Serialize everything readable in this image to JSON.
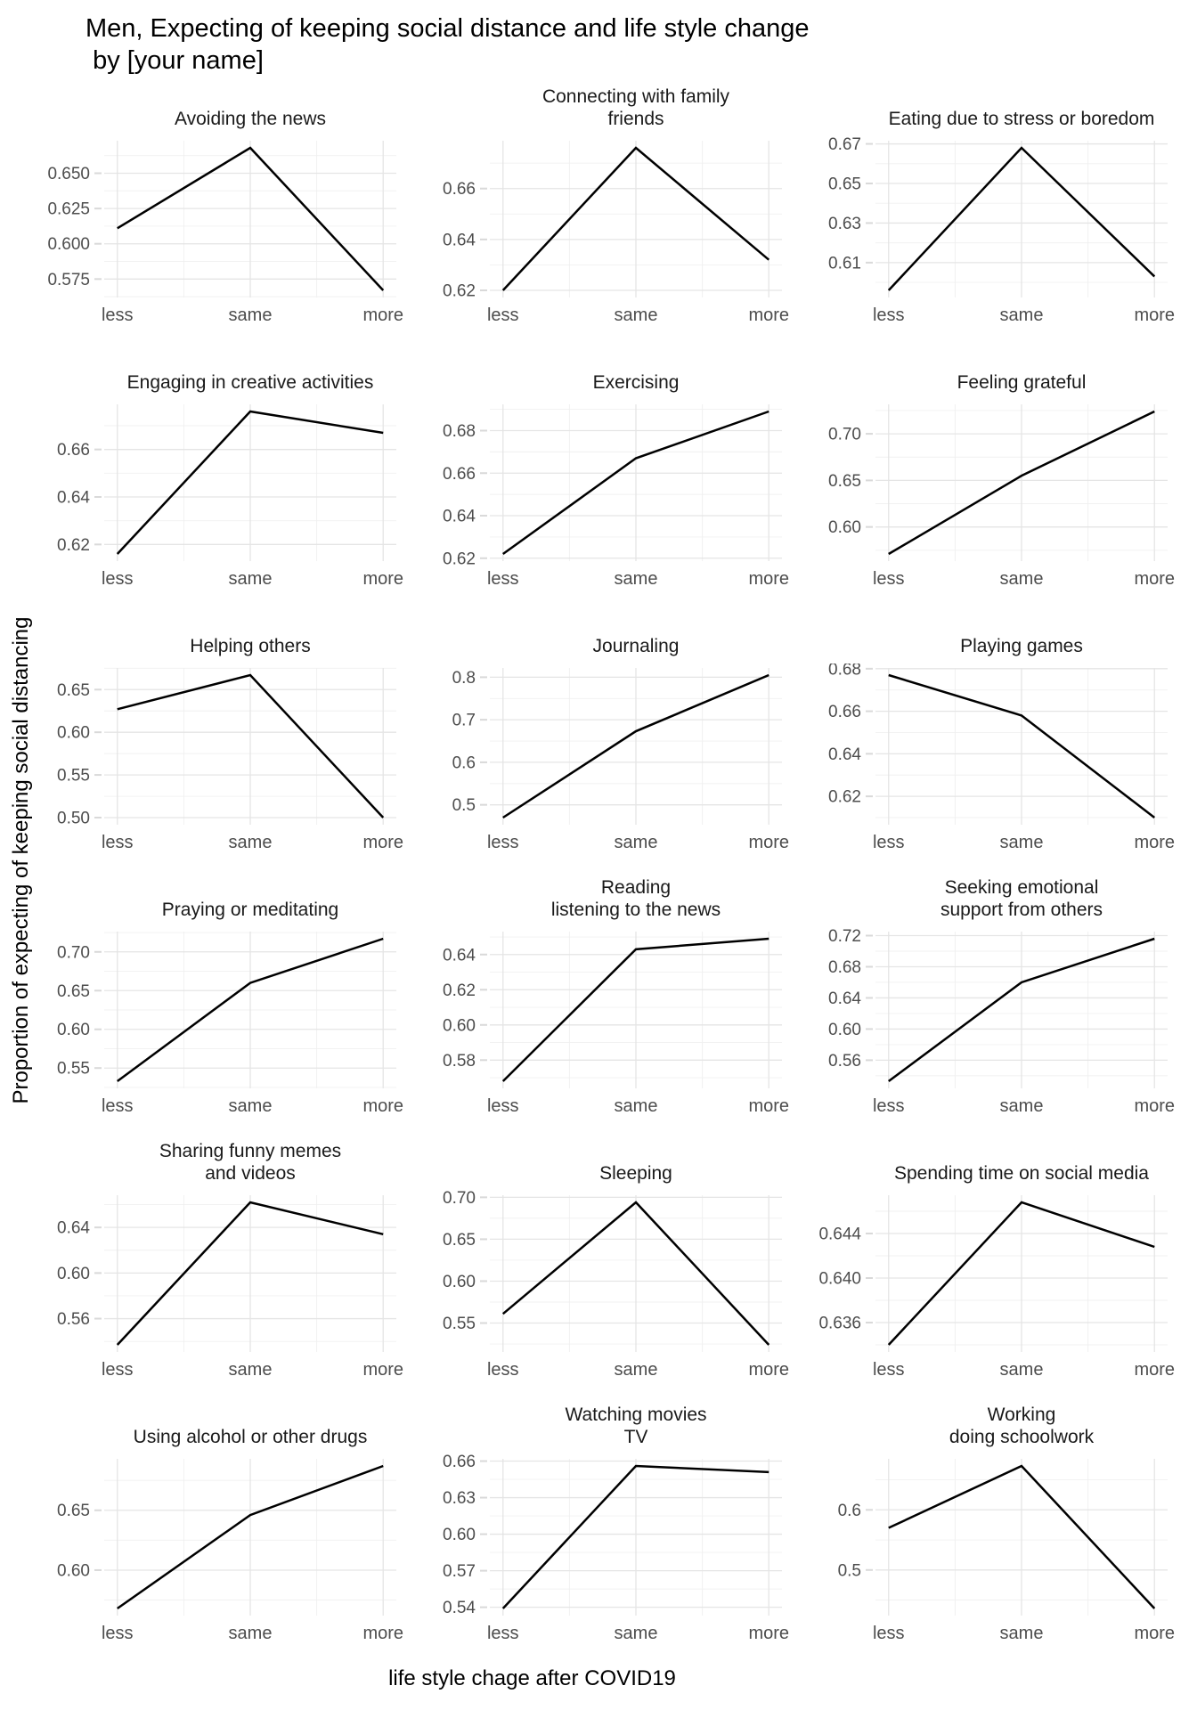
{
  "header": {
    "title": "Men, Expecting of keeping social distance and life style change\n by [your name]"
  },
  "axes": {
    "x_label": "life style chage after COVID19",
    "y_label": "Proportion of expecting of keeping social distancing"
  },
  "colors": {
    "line": "#000000",
    "grid_major": "#e5e5e5",
    "grid_minor": "#f0f0f0",
    "axis_tick": "#d9d9d9",
    "tick_text": "#4d4d4d",
    "facet_title_text": "#1a1a1a",
    "background": "#ffffff"
  },
  "chart_data": {
    "type": "line",
    "layout": {
      "rows": 6,
      "cols": 3,
      "grid": true,
      "legend": false,
      "y_expand": 0.05,
      "free_y_scales": true
    },
    "categories": [
      "less",
      "same",
      "more"
    ],
    "facets": [
      {
        "title": "Avoiding the news",
        "values": [
          0.611,
          0.668,
          0.567
        ],
        "yticks": [
          0.575,
          0.6,
          0.625,
          0.65
        ],
        "ytick_labels": [
          "0.575",
          "0.600",
          "0.625",
          "0.650"
        ]
      },
      {
        "title": "Connecting with family\nfriends",
        "values": [
          0.62,
          0.676,
          0.632
        ],
        "yticks": [
          0.62,
          0.64,
          0.66
        ],
        "ytick_labels": [
          "0.62",
          "0.64",
          "0.66"
        ]
      },
      {
        "title": "Eating due to stress or boredom",
        "values": [
          0.596,
          0.668,
          0.603
        ],
        "yticks": [
          0.61,
          0.63,
          0.65,
          0.67
        ],
        "ytick_labels": [
          "0.61",
          "0.63",
          "0.65",
          "0.67"
        ]
      },
      {
        "title": "Engaging in creative activities",
        "values": [
          0.616,
          0.676,
          0.667
        ],
        "yticks": [
          0.62,
          0.64,
          0.66
        ],
        "ytick_labels": [
          "0.62",
          "0.64",
          "0.66"
        ]
      },
      {
        "title": "Exercising",
        "values": [
          0.622,
          0.667,
          0.689
        ],
        "yticks": [
          0.62,
          0.64,
          0.66,
          0.68
        ],
        "ytick_labels": [
          "0.62",
          "0.64",
          "0.66",
          "0.68"
        ]
      },
      {
        "title": "Feeling grateful",
        "values": [
          0.571,
          0.655,
          0.724
        ],
        "yticks": [
          0.6,
          0.65,
          0.7
        ],
        "ytick_labels": [
          "0.60",
          "0.65",
          "0.70"
        ]
      },
      {
        "title": "Helping others",
        "values": [
          0.627,
          0.667,
          0.5
        ],
        "yticks": [
          0.5,
          0.55,
          0.6,
          0.65
        ],
        "ytick_labels": [
          "0.50",
          "0.55",
          "0.60",
          "0.65"
        ]
      },
      {
        "title": "Journaling",
        "values": [
          0.47,
          0.673,
          0.805
        ],
        "yticks": [
          0.5,
          0.6,
          0.7,
          0.8
        ],
        "ytick_labels": [
          "0.5",
          "0.6",
          "0.7",
          "0.8"
        ]
      },
      {
        "title": "Playing games",
        "values": [
          0.677,
          0.658,
          0.61
        ],
        "yticks": [
          0.62,
          0.64,
          0.66,
          0.68
        ],
        "ytick_labels": [
          "0.62",
          "0.64",
          "0.66",
          "0.68"
        ]
      },
      {
        "title": "Praying or meditating",
        "values": [
          0.533,
          0.66,
          0.717
        ],
        "yticks": [
          0.55,
          0.6,
          0.65,
          0.7
        ],
        "ytick_labels": [
          "0.55",
          "0.60",
          "0.65",
          "0.70"
        ]
      },
      {
        "title": "Reading\nlistening to the news",
        "values": [
          0.568,
          0.643,
          0.649
        ],
        "yticks": [
          0.58,
          0.6,
          0.62,
          0.64
        ],
        "ytick_labels": [
          "0.58",
          "0.60",
          "0.62",
          "0.64"
        ]
      },
      {
        "title": "Seeking emotional\nsupport from others",
        "values": [
          0.533,
          0.66,
          0.716
        ],
        "yticks": [
          0.56,
          0.6,
          0.64,
          0.68,
          0.72
        ],
        "ytick_labels": [
          "0.56",
          "0.60",
          "0.64",
          "0.68",
          "0.72"
        ]
      },
      {
        "title": "Sharing funny memes\nand videos",
        "values": [
          0.537,
          0.662,
          0.634
        ],
        "yticks": [
          0.56,
          0.6,
          0.64
        ],
        "ytick_labels": [
          "0.56",
          "0.60",
          "0.64"
        ]
      },
      {
        "title": "Sleeping",
        "values": [
          0.561,
          0.694,
          0.524
        ],
        "yticks": [
          0.55,
          0.6,
          0.65,
          0.7
        ],
        "ytick_labels": [
          "0.55",
          "0.60",
          "0.65",
          "0.70"
        ]
      },
      {
        "title": "Spending time on social media",
        "values": [
          0.634,
          0.6468,
          0.6428
        ],
        "yticks": [
          0.636,
          0.64,
          0.644
        ],
        "ytick_labels": [
          "0.636",
          "0.640",
          "0.644"
        ]
      },
      {
        "title": "Using alcohol or other drugs",
        "values": [
          0.568,
          0.646,
          0.687
        ],
        "yticks": [
          0.6,
          0.65
        ],
        "ytick_labels": [
          "0.60",
          "0.65"
        ]
      },
      {
        "title": "Watching movies\nTV",
        "values": [
          0.539,
          0.656,
          0.651
        ],
        "yticks": [
          0.54,
          0.57,
          0.6,
          0.63,
          0.66
        ],
        "ytick_labels": [
          "0.54",
          "0.57",
          "0.60",
          "0.63",
          "0.66"
        ]
      },
      {
        "title": "Working\ndoing schoolwork",
        "values": [
          0.57,
          0.673,
          0.436
        ],
        "yticks": [
          0.5,
          0.6
        ],
        "ytick_labels": [
          "0.5",
          "0.6"
        ]
      }
    ]
  }
}
